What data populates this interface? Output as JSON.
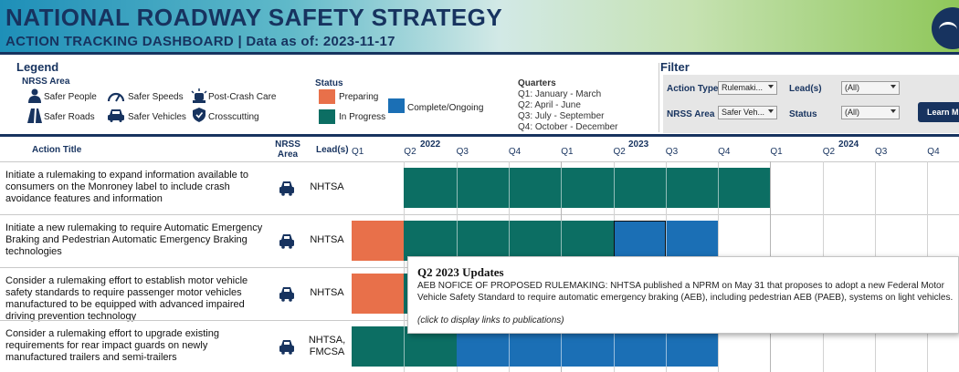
{
  "header": {
    "title": "NATIONAL ROADWAY SAFETY STRATEGY",
    "subtitle": "ACTION TRACKING DASHBOARD  |  Data as of:  2023-11-17"
  },
  "legend": {
    "title": "Legend",
    "nrss_area_title": "NRSS Area",
    "areas": [
      {
        "label": "Safer People",
        "icon": "person-icon"
      },
      {
        "label": "Safer Speeds",
        "icon": "speedometer-icon"
      },
      {
        "label": "Post-Crash Care",
        "icon": "ambulance-light-icon"
      },
      {
        "label": "Safer Roads",
        "icon": "road-icon"
      },
      {
        "label": "Safer Vehicles",
        "icon": "vehicle-icon"
      },
      {
        "label": "Crosscutting",
        "icon": "shield-icon"
      }
    ],
    "status_title": "Status",
    "statuses": [
      {
        "label": "Preparing",
        "color": "#E8704A"
      },
      {
        "label": "In Progress",
        "color": "#0C6E63"
      },
      {
        "label": "Complete/Ongoing",
        "color": "#1B6FB5"
      }
    ],
    "quarters_title": "Quarters",
    "quarters": [
      "Q1:  January - March",
      "Q2:  April - June",
      "Q3:  July - September",
      "Q4:  October - December"
    ]
  },
  "filter": {
    "title": "Filter",
    "action_type_label": "Action Type",
    "action_type_value": "Rulemaki...",
    "leads_label": "Lead(s)",
    "leads_value": "(All)",
    "nrss_area_label": "NRSS Area",
    "nrss_area_value": "Safer Veh...",
    "status_label": "Status",
    "status_value": "(All)",
    "learn_more_label": "Learn M"
  },
  "table": {
    "col_action_title": "Action Title",
    "col_nrss_area_line1": "NRSS",
    "col_nrss_area_line2": "Area",
    "col_leads": "Lead(s)",
    "years": [
      "2022",
      "2023",
      "2024"
    ],
    "quarter_labels": [
      "Q1",
      "Q2",
      "Q3",
      "Q4",
      "Q1",
      "Q2",
      "Q3",
      "Q4",
      "Q1",
      "Q2",
      "Q3",
      "Q4"
    ],
    "rows": [
      {
        "title": "Initiate a rulemaking to expand information available to consumers on the Monroney label to include crash avoidance features and information",
        "area_icon": "vehicle-icon",
        "lead": "NHTSA",
        "segments": [
          {
            "from_quarter": 1,
            "to_quarter": 7,
            "status": "In Progress"
          }
        ]
      },
      {
        "title": "Initiate a new rulemaking to require Automatic Emergency Braking and Pedestrian Automatic Emergency Braking technologies",
        "area_icon": "vehicle-icon",
        "lead": "NHTSA",
        "segments": [
          {
            "from_quarter": 0,
            "to_quarter": 0,
            "status": "Preparing"
          },
          {
            "from_quarter": 1,
            "to_quarter": 4,
            "status": "In Progress"
          },
          {
            "from_quarter": 5,
            "to_quarter": 6,
            "status": "Complete/Ongoing"
          }
        ]
      },
      {
        "title": "Consider a rulemaking effort to establish motor vehicle safety standards to require passenger motor vehicles manufactured to be equipped with advanced impaired driving prevention technology",
        "area_icon": "vehicle-icon",
        "lead": "NHTSA",
        "segments": [
          {
            "from_quarter": 0,
            "to_quarter": 0,
            "status": "Preparing"
          },
          {
            "from_quarter": 1,
            "to_quarter": 1,
            "status": "In Progress"
          }
        ]
      },
      {
        "title": "Consider a rulemaking effort to upgrade existing requirements for rear impact guards on newly manufactured trailers and semi-trailers",
        "area_icon": "vehicle-icon",
        "lead": "NHTSA, FMCSA",
        "segments": [
          {
            "from_quarter": 0,
            "to_quarter": 1,
            "status": "In Progress"
          },
          {
            "from_quarter": 2,
            "to_quarter": 6,
            "status": "Complete/Ongoing"
          }
        ]
      }
    ]
  },
  "tooltip": {
    "title": "Q2  2023  Updates",
    "body": "AEB NOFICE OF PROPOSED RULEMAKING: NHTSA published a NPRM on May 31 that proposes to adopt a new Federal Motor Vehicle Safety Standard to require automatic emergency braking (AEB), including pedestrian AEB (PAEB), systems on light vehicles.",
    "click_hint": "(click to display links to publications)"
  }
}
